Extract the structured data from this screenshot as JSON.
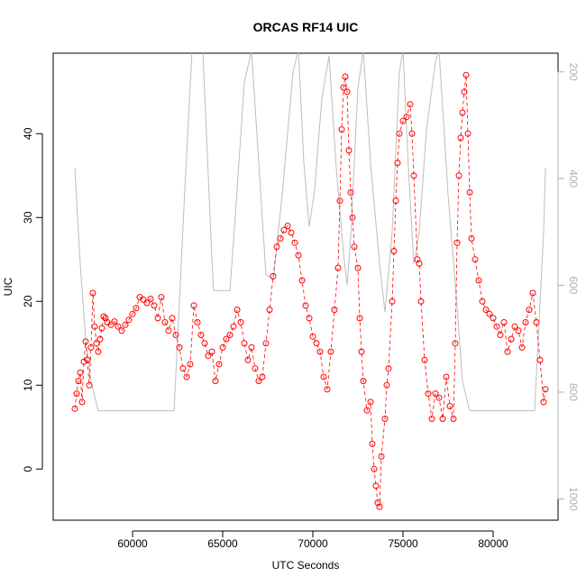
{
  "chart_data": {
    "type": "scatter",
    "title": "ORCAS RF14 UIC",
    "xlabel": "UTC Seconds",
    "ylabel": "UIC",
    "xlim": [
      55600,
      83600
    ],
    "ylim": [
      -6.1,
      49.6
    ],
    "x_ticks": [
      "60000",
      "65000",
      "70000",
      "75000",
      "80000"
    ],
    "x_tick_values": [
      60000,
      65000,
      70000,
      75000,
      80000
    ],
    "y_ticks": [
      "0",
      "10",
      "20",
      "30",
      "40"
    ],
    "y_tick_values": [
      0,
      10,
      20,
      30,
      40
    ],
    "right_axis": {
      "ticks": [
        "200",
        "400",
        "600",
        "800",
        "1000"
      ],
      "tick_values": [
        200,
        400,
        600,
        800,
        1000
      ],
      "lim": [
        1040,
        165
      ],
      "color": "#b0b0b0"
    },
    "grid": false,
    "legend": "none",
    "series": [
      {
        "marker": "open-circle",
        "color": "#ff0000",
        "points": [
          [
            56800,
            7.2
          ],
          [
            56900,
            9.0
          ],
          [
            57000,
            10.5
          ],
          [
            57100,
            11.5
          ],
          [
            57200,
            8.0
          ],
          [
            57300,
            12.8
          ],
          [
            57400,
            15.2
          ],
          [
            57500,
            13.0
          ],
          [
            57600,
            10.0
          ],
          [
            57700,
            14.5
          ],
          [
            57800,
            21.0
          ],
          [
            57900,
            17.0
          ],
          [
            58000,
            15.0
          ],
          [
            58100,
            14.0
          ],
          [
            58200,
            15.5
          ],
          [
            58300,
            16.8
          ],
          [
            58400,
            18.2
          ],
          [
            58500,
            18.0
          ],
          [
            58600,
            17.5
          ],
          [
            58800,
            17.2
          ],
          [
            59000,
            17.6
          ],
          [
            59200,
            17.0
          ],
          [
            59400,
            16.5
          ],
          [
            59600,
            17.2
          ],
          [
            59800,
            17.8
          ],
          [
            60000,
            18.5
          ],
          [
            60200,
            19.2
          ],
          [
            60400,
            20.5
          ],
          [
            60600,
            20.2
          ],
          [
            60800,
            19.8
          ],
          [
            61000,
            20.3
          ],
          [
            61200,
            19.5
          ],
          [
            61400,
            18.0
          ],
          [
            61600,
            20.5
          ],
          [
            61800,
            17.5
          ],
          [
            62000,
            16.5
          ],
          [
            62200,
            18.0
          ],
          [
            62400,
            16.0
          ],
          [
            62600,
            14.5
          ],
          [
            62800,
            12.0
          ],
          [
            63000,
            11.0
          ],
          [
            63200,
            12.5
          ],
          [
            63400,
            19.5
          ],
          [
            63600,
            17.5
          ],
          [
            63800,
            16.0
          ],
          [
            64000,
            15.0
          ],
          [
            64200,
            13.5
          ],
          [
            64400,
            14.0
          ],
          [
            64600,
            10.5
          ],
          [
            64800,
            12.5
          ],
          [
            65000,
            14.5
          ],
          [
            65200,
            15.5
          ],
          [
            65400,
            16.0
          ],
          [
            65600,
            17.0
          ],
          [
            65800,
            19.0
          ],
          [
            66000,
            17.5
          ],
          [
            66200,
            15.0
          ],
          [
            66400,
            13.0
          ],
          [
            66600,
            14.5
          ],
          [
            66800,
            12.0
          ],
          [
            67000,
            10.5
          ],
          [
            67200,
            11.0
          ],
          [
            67400,
            15.0
          ],
          [
            67600,
            19.0
          ],
          [
            67800,
            23.0
          ],
          [
            68000,
            26.5
          ],
          [
            68200,
            27.5
          ],
          [
            68400,
            28.5
          ],
          [
            68600,
            29.0
          ],
          [
            68800,
            28.2
          ],
          [
            69000,
            27.0
          ],
          [
            69200,
            25.5
          ],
          [
            69400,
            22.5
          ],
          [
            69600,
            19.5
          ],
          [
            69800,
            18.0
          ],
          [
            70000,
            15.8
          ],
          [
            70200,
            15.0
          ],
          [
            70400,
            14.0
          ],
          [
            70600,
            11.0
          ],
          [
            70800,
            9.5
          ],
          [
            71000,
            14.0
          ],
          [
            71200,
            19.0
          ],
          [
            71400,
            24.0
          ],
          [
            71500,
            32.0
          ],
          [
            71600,
            40.5
          ],
          [
            71700,
            45.5
          ],
          [
            71800,
            46.8
          ],
          [
            71900,
            45.0
          ],
          [
            72000,
            38.0
          ],
          [
            72100,
            33.0
          ],
          [
            72200,
            30.0
          ],
          [
            72300,
            26.5
          ],
          [
            72500,
            24.0
          ],
          [
            72600,
            18.0
          ],
          [
            72700,
            14.0
          ],
          [
            72800,
            10.5
          ],
          [
            73000,
            7.0
          ],
          [
            73200,
            8.0
          ],
          [
            73300,
            3.0
          ],
          [
            73400,
            0.0
          ],
          [
            73500,
            -2.0
          ],
          [
            73600,
            -4.0
          ],
          [
            73700,
            -4.5
          ],
          [
            73800,
            1.5
          ],
          [
            74000,
            6.0
          ],
          [
            74100,
            10.0
          ],
          [
            74200,
            12.0
          ],
          [
            74400,
            20.0
          ],
          [
            74500,
            26.0
          ],
          [
            74600,
            32.0
          ],
          [
            74700,
            36.5
          ],
          [
            74800,
            40.0
          ],
          [
            75000,
            41.5
          ],
          [
            75200,
            42.0
          ],
          [
            75400,
            43.5
          ],
          [
            75500,
            40.0
          ],
          [
            75600,
            35.0
          ],
          [
            75800,
            25.0
          ],
          [
            75900,
            24.5
          ],
          [
            76000,
            20.0
          ],
          [
            76200,
            13.0
          ],
          [
            76400,
            9.0
          ],
          [
            76600,
            6.0
          ],
          [
            76800,
            9.0
          ],
          [
            77000,
            8.5
          ],
          [
            77200,
            6.0
          ],
          [
            77400,
            11.0
          ],
          [
            77600,
            7.5
          ],
          [
            77800,
            6.0
          ],
          [
            77900,
            15.0
          ],
          [
            78000,
            27.0
          ],
          [
            78100,
            35.0
          ],
          [
            78200,
            39.5
          ],
          [
            78300,
            42.5
          ],
          [
            78400,
            45.0
          ],
          [
            78500,
            47.0
          ],
          [
            78600,
            40.0
          ],
          [
            78700,
            33.0
          ],
          [
            78800,
            27.5
          ],
          [
            79000,
            25.0
          ],
          [
            79200,
            22.5
          ],
          [
            79400,
            20.0
          ],
          [
            79600,
            19.0
          ],
          [
            79800,
            18.5
          ],
          [
            80000,
            18.0
          ],
          [
            80200,
            17.0
          ],
          [
            80400,
            16.0
          ],
          [
            80600,
            17.5
          ],
          [
            80800,
            14.0
          ],
          [
            81000,
            15.5
          ],
          [
            81200,
            17.0
          ],
          [
            81400,
            16.5
          ],
          [
            81600,
            14.5
          ],
          [
            81800,
            17.5
          ],
          [
            82000,
            19.0
          ],
          [
            82200,
            21.0
          ],
          [
            82400,
            17.5
          ],
          [
            82600,
            13.0
          ],
          [
            82800,
            8.0
          ],
          [
            82900,
            9.5
          ]
        ]
      },
      {
        "axis": "right",
        "type": "line",
        "color": "#bebebe",
        "points": [
          [
            56800,
            380
          ],
          [
            57100,
            560
          ],
          [
            57400,
            700
          ],
          [
            57700,
            780
          ],
          [
            58100,
            835
          ],
          [
            60000,
            835
          ],
          [
            62300,
            835
          ],
          [
            62500,
            700
          ],
          [
            62900,
            420
          ],
          [
            63300,
            160
          ],
          [
            63900,
            160
          ],
          [
            64400,
            550
          ],
          [
            64500,
            610
          ],
          [
            65400,
            610
          ],
          [
            65700,
            470
          ],
          [
            66200,
            220
          ],
          [
            66600,
            160
          ],
          [
            67000,
            370
          ],
          [
            67400,
            580
          ],
          [
            67800,
            590
          ],
          [
            68300,
            430
          ],
          [
            68900,
            200
          ],
          [
            69200,
            160
          ],
          [
            69500,
            370
          ],
          [
            69800,
            490
          ],
          [
            70100,
            420
          ],
          [
            70500,
            250
          ],
          [
            70900,
            170
          ],
          [
            71300,
            380
          ],
          [
            71700,
            540
          ],
          [
            71900,
            600
          ],
          [
            72100,
            510
          ],
          [
            72500,
            230
          ],
          [
            72800,
            160
          ],
          [
            73200,
            370
          ],
          [
            73700,
            560
          ],
          [
            74000,
            650
          ],
          [
            74400,
            500
          ],
          [
            74800,
            200
          ],
          [
            75000,
            160
          ],
          [
            75300,
            380
          ],
          [
            75600,
            560
          ],
          [
            75900,
            500
          ],
          [
            76300,
            310
          ],
          [
            76800,
            180
          ],
          [
            77000,
            160
          ],
          [
            77500,
            430
          ],
          [
            78000,
            640
          ],
          [
            78300,
            780
          ],
          [
            78700,
            835
          ],
          [
            80500,
            835
          ],
          [
            82300,
            835
          ],
          [
            82800,
            500
          ],
          [
            82900,
            380
          ]
        ]
      }
    ]
  }
}
